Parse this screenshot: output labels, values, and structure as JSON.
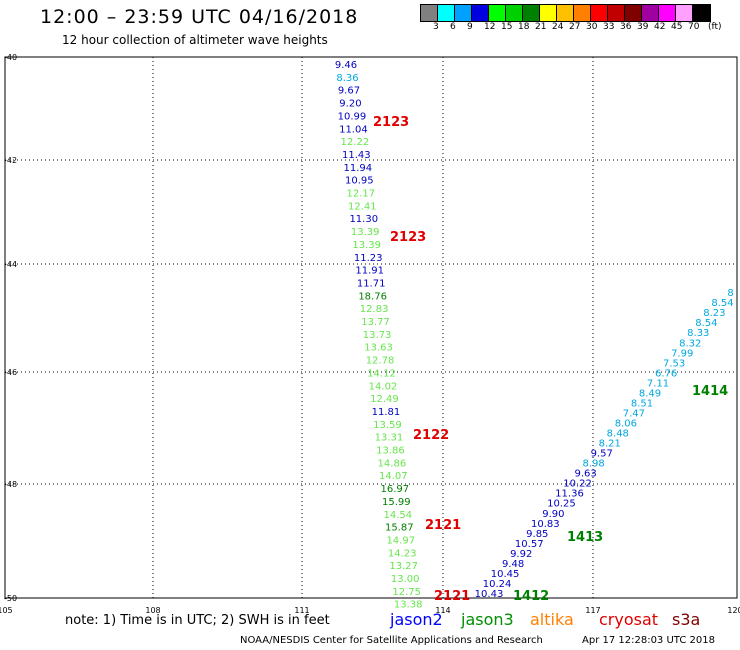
{
  "header": {
    "title": "12:00 – 23:59 UTC 04/16/2018",
    "subtitle": "12 hour collection of altimeter wave heights"
  },
  "scale": {
    "unit": "(ft)",
    "colors": [
      "#808080",
      "#00ffff",
      "#00a0ff",
      "#0000e0",
      "#00ff00",
      "#00d000",
      "#008000",
      "#ffff00",
      "#ffc000",
      "#ff8000",
      "#ff0000",
      "#c00000",
      "#800000",
      "#a000a0",
      "#ff00ff",
      "#ffa0ff",
      "#000000"
    ],
    "labels": [
      "3",
      "6",
      "9",
      "12",
      "15",
      "18",
      "21",
      "24",
      "27",
      "30",
      "33",
      "36",
      "39",
      "42",
      "45",
      "70"
    ]
  },
  "axes": {
    "x_labels": [
      "105",
      "108",
      "111",
      "114",
      "117",
      "120"
    ],
    "y_labels": [
      "-40",
      "-42",
      "-44",
      "-46",
      "-48",
      "-50"
    ]
  },
  "map_data": {
    "pass_left": [
      {
        "v": "9.46",
        "c": "#0000c0"
      },
      {
        "v": "8.36",
        "c": "#00a8e0"
      },
      {
        "v": "9.67",
        "c": "#0000c0"
      },
      {
        "v": "9.20",
        "c": "#0000c0"
      },
      {
        "v": "10.99",
        "c": "#0000c0"
      },
      {
        "v": "11.04",
        "c": "#0000c0"
      },
      {
        "v": "12.22",
        "c": "#66e64c"
      },
      {
        "v": "11.43",
        "c": "#0000c0"
      },
      {
        "v": "11.94",
        "c": "#0000c0"
      },
      {
        "v": "10.95",
        "c": "#0000c0"
      },
      {
        "v": "12.17",
        "c": "#66e64c"
      },
      {
        "v": "12.41",
        "c": "#66e64c"
      },
      {
        "v": "11.30",
        "c": "#0000c0"
      },
      {
        "v": "13.39",
        "c": "#66e64c"
      },
      {
        "v": "13.39",
        "c": "#66e64c"
      },
      {
        "v": "11.23",
        "c": "#0000c0"
      },
      {
        "v": "11.91",
        "c": "#0000c0"
      },
      {
        "v": "11.71",
        "c": "#0000c0"
      },
      {
        "v": "18.76",
        "c": "#008000"
      },
      {
        "v": "12.83",
        "c": "#66e64c"
      },
      {
        "v": "13.77",
        "c": "#66e64c"
      },
      {
        "v": "13.73",
        "c": "#66e64c"
      },
      {
        "v": "13.63",
        "c": "#66e64c"
      },
      {
        "v": "12.78",
        "c": "#66e64c"
      },
      {
        "v": "14.12",
        "c": "#66e64c"
      },
      {
        "v": "14.02",
        "c": "#66e64c"
      },
      {
        "v": "12.49",
        "c": "#66e64c"
      },
      {
        "v": "11.81",
        "c": "#0000c0"
      },
      {
        "v": "13.59",
        "c": "#66e64c"
      },
      {
        "v": "13.31",
        "c": "#66e64c"
      },
      {
        "v": "13.86",
        "c": "#66e64c"
      },
      {
        "v": "14.86",
        "c": "#66e64c"
      },
      {
        "v": "14.07",
        "c": "#66e64c"
      },
      {
        "v": "16.97",
        "c": "#008000"
      },
      {
        "v": "15.99",
        "c": "#008000"
      },
      {
        "v": "14.54",
        "c": "#66e64c"
      },
      {
        "v": "15.87",
        "c": "#008000"
      },
      {
        "v": "14.97",
        "c": "#66e64c"
      },
      {
        "v": "14.23",
        "c": "#66e64c"
      },
      {
        "v": "13.27",
        "c": "#66e64c"
      },
      {
        "v": "13.00",
        "c": "#66e64c"
      },
      {
        "v": "12.75",
        "c": "#66e64c"
      },
      {
        "v": "13.38",
        "c": "#66e64c"
      }
    ],
    "pass_right": [
      {
        "v": "10.43",
        "c": "#0000c0"
      },
      {
        "v": "10.24",
        "c": "#0000c0"
      },
      {
        "v": "10.45",
        "c": "#0000c0"
      },
      {
        "v": "9.48",
        "c": "#0000c0"
      },
      {
        "v": "9.92",
        "c": "#0000c0"
      },
      {
        "v": "10.57",
        "c": "#0000c0"
      },
      {
        "v": "9.85",
        "c": "#0000c0"
      },
      {
        "v": "10.83",
        "c": "#0000c0"
      },
      {
        "v": "9.90",
        "c": "#0000c0"
      },
      {
        "v": "10.25",
        "c": "#0000c0"
      },
      {
        "v": "11.36",
        "c": "#0000c0"
      },
      {
        "v": "10.22",
        "c": "#0000c0"
      },
      {
        "v": "9.63",
        "c": "#0000c0"
      },
      {
        "v": "8.98",
        "c": "#00a8e0"
      },
      {
        "v": "9.57",
        "c": "#0000c0"
      },
      {
        "v": "8.21",
        "c": "#00a8e0"
      },
      {
        "v": "8.48",
        "c": "#00a8e0"
      },
      {
        "v": "8.06",
        "c": "#00a8e0"
      },
      {
        "v": "7.47",
        "c": "#00a8e0"
      },
      {
        "v": "8.51",
        "c": "#00a8e0"
      },
      {
        "v": "8.49",
        "c": "#00a8e0"
      },
      {
        "v": "7.11",
        "c": "#00a8e0"
      },
      {
        "v": "6.76",
        "c": "#00a8e0"
      },
      {
        "v": "7.53",
        "c": "#00a8e0"
      },
      {
        "v": "7.99",
        "c": "#00a8e0"
      },
      {
        "v": "8.32",
        "c": "#00a8e0"
      },
      {
        "v": "8.33",
        "c": "#00a8e0"
      },
      {
        "v": "8.54",
        "c": "#00a8e0"
      },
      {
        "v": "8.23",
        "c": "#00a8e0"
      },
      {
        "v": "8.54",
        "c": "#00a8e0"
      },
      {
        "v": "8",
        "c": "#00a8e0"
      }
    ],
    "time_tags": [
      {
        "t": "2123",
        "c": "#e00000"
      },
      {
        "t": "2123",
        "c": "#e00000"
      },
      {
        "t": "2122",
        "c": "#e00000"
      },
      {
        "t": "2121",
        "c": "#e00000"
      },
      {
        "t": "2121",
        "c": "#e00000"
      },
      {
        "t": "1412",
        "c": "#008000"
      },
      {
        "t": "1413",
        "c": "#008000"
      },
      {
        "t": "1414",
        "c": "#008000"
      }
    ]
  },
  "footer": {
    "note": "note: 1) Time is in UTC; 2) SWH is in feet",
    "satellites": [
      {
        "name": "jason2",
        "color": "#0000ff"
      },
      {
        "name": "jason3",
        "color": "#009000"
      },
      {
        "name": "altika",
        "color": "#ff8000"
      },
      {
        "name": "cryosat",
        "color": "#e00000"
      },
      {
        "name": "s3a",
        "color": "#800000"
      }
    ],
    "credit": "NOAA/NESDIS Center for Satellite Applications and Research",
    "timestamp": "Apr 17 12:28:03 UTC 2018"
  }
}
